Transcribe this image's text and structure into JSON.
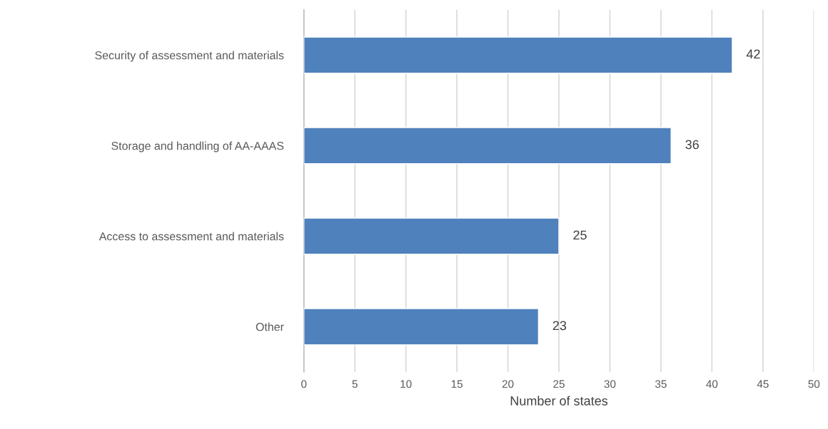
{
  "chart_data": {
    "type": "bar",
    "orientation": "horizontal",
    "xlabel": "Number of states",
    "categories": [
      "Security of assessment and materials",
      "Storage and handling of AA-AAAS",
      "Access to assessment and materials",
      "Other"
    ],
    "values": [
      42,
      36,
      25,
      23
    ],
    "color": "#4f81bd",
    "xlim": [
      0,
      50
    ],
    "xticks": [
      0,
      5,
      10,
      15,
      20,
      25,
      30,
      35,
      40,
      45,
      50
    ],
    "grid": "x",
    "data_labels": true,
    "legend": false
  }
}
